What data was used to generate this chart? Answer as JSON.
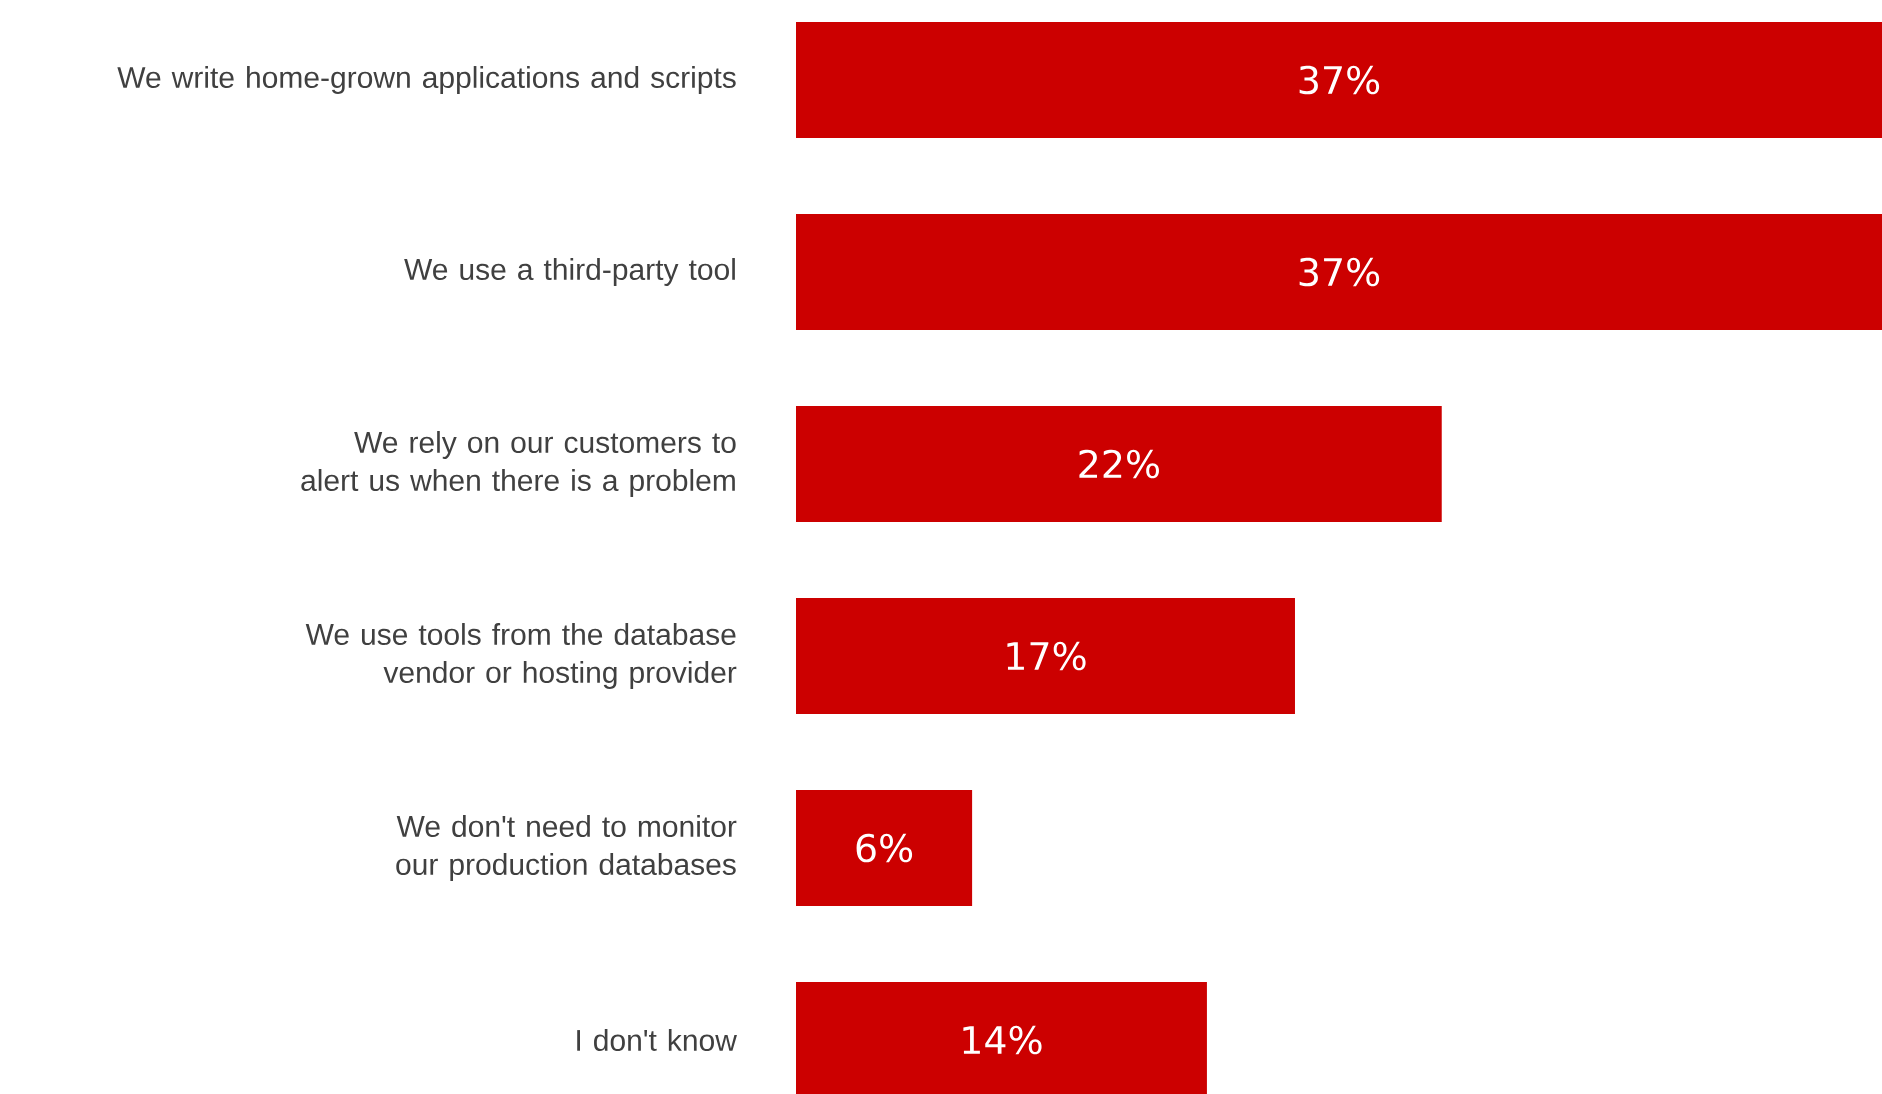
{
  "chart_data": {
    "type": "bar",
    "orientation": "horizontal",
    "categories": [
      "We write home-grown applications and scripts",
      "We use a third-party tool",
      "We rely on our customers to alert us when there is a problem",
      "We use tools from the database vendor or hosting provider",
      "We don't need to monitor our production databases",
      "I don't know"
    ],
    "values": [
      37,
      37,
      22,
      17,
      6,
      14
    ],
    "value_labels": [
      "37%",
      "37%",
      "22%",
      "17%",
      "6%",
      "14%"
    ],
    "color": "#cc0000",
    "xlim": [
      0,
      37
    ],
    "tick_labels": "y"
  }
}
